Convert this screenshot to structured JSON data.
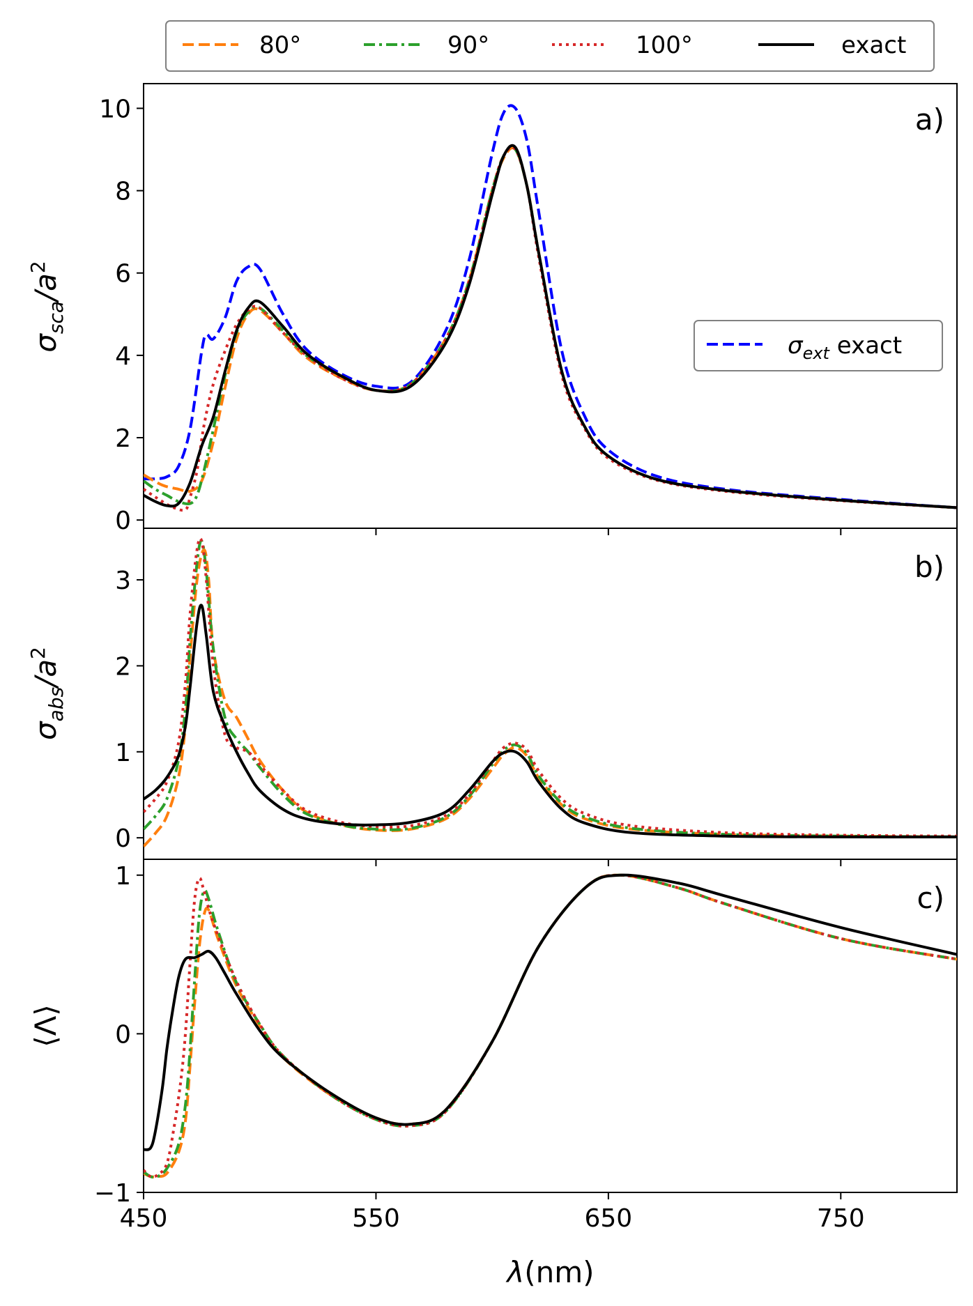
{
  "colors": {
    "80": "#ff7f0e",
    "90": "#2ca02c",
    "100": "#d62728",
    "exact": "#000000",
    "ext": "#0000ff",
    "legend_border": "#808080"
  },
  "legend": {
    "items": [
      {
        "key": "80",
        "label": "80°",
        "dash": "dashed"
      },
      {
        "key": "90",
        "label": "90°",
        "dash": "dashdot"
      },
      {
        "key": "100",
        "label": "100°",
        "dash": "dotted"
      },
      {
        "key": "exact",
        "label": "exact",
        "dash": "solid"
      }
    ],
    "placement": "top",
    "inset_label_sym": "σ",
    "inset_label_sub": "ext",
    "inset_label_rest": " exact"
  },
  "xaxis": {
    "label_sym": "λ",
    "label_rest": "(nm)",
    "lim": [
      450,
      800
    ],
    "ticks": [
      450,
      550,
      650,
      750
    ],
    "tick_labels": [
      "450",
      "550",
      "650",
      "750"
    ]
  },
  "chart_data": [
    {
      "type": "line",
      "panel_label": "a)",
      "ylabel_sym": "σ",
      "ylabel_sub": "sca",
      "ylabel_rest": "/a",
      "ylabel_sup": "2",
      "ylim": [
        -0.2,
        10.6
      ],
      "yticks": [
        0,
        2,
        4,
        6,
        8,
        10
      ],
      "ytick_labels": [
        "0",
        "2",
        "4",
        "6",
        "8",
        "10"
      ],
      "series": [
        {
          "key": "80",
          "x": [
            450,
            458,
            465,
            470,
            475,
            480,
            485,
            490,
            495,
            500,
            510,
            520,
            535,
            550,
            565,
            580,
            590,
            600,
            605,
            610,
            615,
            620,
            630,
            640,
            650,
            670,
            700,
            750,
            800
          ],
          "y": [
            1.1,
            0.85,
            0.75,
            0.7,
            0.95,
            1.9,
            3.2,
            4.4,
            5.0,
            5.1,
            4.55,
            3.95,
            3.45,
            3.15,
            3.3,
            4.4,
            5.8,
            8.0,
            8.8,
            9.0,
            8.1,
            6.5,
            3.6,
            2.25,
            1.55,
            1.0,
            0.72,
            0.48,
            0.3
          ]
        },
        {
          "key": "90",
          "x": [
            450,
            455,
            460,
            465,
            470,
            473,
            476,
            480,
            485,
            490,
            495,
            500,
            510,
            520,
            535,
            550,
            565,
            580,
            590,
            600,
            605,
            610,
            615,
            620,
            630,
            640,
            650,
            670,
            700,
            750,
            800
          ],
          "y": [
            0.95,
            0.75,
            0.6,
            0.45,
            0.4,
            0.6,
            1.2,
            2.2,
            3.5,
            4.55,
            5.05,
            5.15,
            4.6,
            4.0,
            3.5,
            3.15,
            3.3,
            4.4,
            5.8,
            8.0,
            8.85,
            9.0,
            8.1,
            6.5,
            3.6,
            2.25,
            1.55,
            1.0,
            0.72,
            0.48,
            0.3
          ]
        },
        {
          "key": "100",
          "x": [
            450,
            458,
            463,
            468,
            470,
            473,
            476,
            480,
            485,
            490,
            495,
            500,
            510,
            520,
            535,
            550,
            565,
            580,
            590,
            600,
            605,
            610,
            615,
            620,
            630,
            640,
            650,
            670,
            700,
            750,
            800
          ],
          "y": [
            0.75,
            0.45,
            0.3,
            0.25,
            0.55,
            1.2,
            2.3,
            3.3,
            4.1,
            4.75,
            5.1,
            5.15,
            4.55,
            4.0,
            3.45,
            3.15,
            3.3,
            4.4,
            5.8,
            8.0,
            8.85,
            9.0,
            8.1,
            6.4,
            3.5,
            2.2,
            1.5,
            0.98,
            0.7,
            0.47,
            0.3
          ]
        },
        {
          "key": "exact",
          "x": [
            450,
            455,
            460,
            465,
            470,
            475,
            480,
            485,
            490,
            495,
            500,
            510,
            520,
            535,
            550,
            565,
            580,
            590,
            600,
            605,
            610,
            615,
            620,
            630,
            640,
            650,
            670,
            700,
            750,
            800
          ],
          "y": [
            0.6,
            0.45,
            0.35,
            0.4,
            0.9,
            1.8,
            2.5,
            3.6,
            4.6,
            5.15,
            5.3,
            4.7,
            4.05,
            3.5,
            3.15,
            3.25,
            4.3,
            5.7,
            7.9,
            8.85,
            9.05,
            8.1,
            6.5,
            3.6,
            2.25,
            1.55,
            1.0,
            0.72,
            0.48,
            0.3
          ]
        },
        {
          "key": "ext",
          "x": [
            450,
            455,
            460,
            465,
            470,
            475,
            477,
            480,
            485,
            490,
            495,
            500,
            510,
            520,
            535,
            550,
            565,
            580,
            590,
            600,
            605,
            610,
            615,
            620,
            630,
            640,
            650,
            670,
            700,
            750,
            800
          ],
          "y": [
            1.0,
            1.0,
            1.05,
            1.3,
            2.2,
            4.1,
            4.5,
            4.4,
            4.9,
            5.8,
            6.15,
            6.1,
            5.0,
            4.15,
            3.55,
            3.25,
            3.35,
            4.6,
            6.3,
            8.9,
            9.9,
            10.0,
            9.2,
            7.5,
            4.1,
            2.5,
            1.7,
            1.08,
            0.75,
            0.5,
            0.3
          ]
        }
      ]
    },
    {
      "type": "line",
      "panel_label": "b)",
      "ylabel_sym": "σ",
      "ylabel_sub": "abs",
      "ylabel_rest": "/a",
      "ylabel_sup": "2",
      "ylim": [
        -0.25,
        3.6
      ],
      "yticks": [
        0,
        1,
        2,
        3
      ],
      "ytick_labels": [
        "0",
        "1",
        "2",
        "3"
      ],
      "series": [
        {
          "key": "80",
          "x": [
            450,
            455,
            460,
            465,
            468,
            470,
            473,
            476,
            478,
            480,
            485,
            490,
            495,
            500,
            510,
            520,
            535,
            550,
            565,
            580,
            590,
            600,
            605,
            610,
            615,
            620,
            630,
            640,
            660,
            700,
            750,
            800
          ],
          "y": [
            -0.1,
            0.05,
            0.25,
            0.7,
            1.3,
            2.1,
            3.0,
            3.35,
            3.0,
            2.2,
            1.6,
            1.4,
            1.15,
            0.9,
            0.55,
            0.3,
            0.15,
            0.09,
            0.1,
            0.22,
            0.45,
            0.8,
            0.97,
            1.05,
            0.95,
            0.7,
            0.38,
            0.22,
            0.1,
            0.04,
            0.02,
            0.01
          ]
        },
        {
          "key": "90",
          "x": [
            450,
            455,
            460,
            465,
            468,
            470,
            473,
            475,
            477,
            480,
            485,
            490,
            495,
            500,
            510,
            520,
            535,
            550,
            565,
            580,
            590,
            600,
            605,
            610,
            615,
            620,
            630,
            640,
            660,
            700,
            750,
            800
          ],
          "y": [
            0.1,
            0.25,
            0.45,
            0.9,
            1.5,
            2.3,
            3.2,
            3.45,
            3.1,
            2.2,
            1.4,
            1.15,
            1.0,
            0.82,
            0.5,
            0.28,
            0.15,
            0.1,
            0.11,
            0.24,
            0.48,
            0.85,
            1.02,
            1.08,
            0.98,
            0.72,
            0.4,
            0.24,
            0.11,
            0.04,
            0.02,
            0.01
          ]
        },
        {
          "key": "100",
          "x": [
            450,
            455,
            460,
            465,
            468,
            470,
            473,
            475,
            477,
            480,
            485,
            490,
            495,
            500,
            510,
            520,
            535,
            550,
            565,
            580,
            590,
            600,
            605,
            610,
            615,
            620,
            630,
            640,
            660,
            700,
            750,
            800
          ],
          "y": [
            0.3,
            0.45,
            0.65,
            1.1,
            1.8,
            2.6,
            3.35,
            3.45,
            3.0,
            2.0,
            1.2,
            1.05,
            1.0,
            0.85,
            0.55,
            0.32,
            0.18,
            0.13,
            0.14,
            0.26,
            0.5,
            0.88,
            1.05,
            1.1,
            1.02,
            0.78,
            0.45,
            0.28,
            0.14,
            0.06,
            0.03,
            0.02
          ]
        },
        {
          "key": "exact",
          "x": [
            450,
            455,
            460,
            465,
            468,
            470,
            473,
            475,
            477,
            480,
            485,
            490,
            495,
            500,
            510,
            520,
            535,
            550,
            565,
            580,
            590,
            600,
            605,
            610,
            615,
            620,
            630,
            640,
            660,
            700,
            750,
            800
          ],
          "y": [
            0.45,
            0.55,
            0.7,
            0.95,
            1.3,
            1.75,
            2.5,
            2.7,
            2.35,
            1.7,
            1.3,
            1.0,
            0.75,
            0.55,
            0.33,
            0.22,
            0.16,
            0.15,
            0.18,
            0.3,
            0.55,
            0.88,
            0.99,
            1.0,
            0.88,
            0.65,
            0.33,
            0.17,
            0.06,
            0.02,
            0.01,
            0.01
          ]
        }
      ]
    },
    {
      "type": "line",
      "panel_label": "c)",
      "ylabel_text": "⟨Λ⟩",
      "ylim": [
        -1.0,
        1.1
      ],
      "yticks": [
        -1,
        0,
        1
      ],
      "ytick_labels": [
        "−1",
        "0",
        "1"
      ],
      "series": [
        {
          "key": "80",
          "x": [
            450,
            453,
            456,
            460,
            465,
            468,
            470,
            472,
            474,
            476,
            478,
            482,
            490,
            500,
            510,
            530,
            550,
            565,
            580,
            600,
            620,
            640,
            655,
            680,
            700,
            750,
            800
          ],
          "y": [
            -0.88,
            -0.9,
            -0.9,
            -0.88,
            -0.75,
            -0.55,
            -0.2,
            0.2,
            0.55,
            0.75,
            0.78,
            0.6,
            0.3,
            0.05,
            -0.15,
            -0.38,
            -0.53,
            -0.57,
            -0.48,
            -0.05,
            0.55,
            0.92,
            1.0,
            0.92,
            0.82,
            0.6,
            0.47
          ]
        },
        {
          "key": "90",
          "x": [
            450,
            453,
            456,
            460,
            465,
            468,
            470,
            472,
            474,
            476,
            478,
            482,
            490,
            500,
            510,
            530,
            550,
            565,
            580,
            600,
            620,
            640,
            655,
            680,
            700,
            750,
            800
          ],
          "y": [
            -0.87,
            -0.9,
            -0.9,
            -0.85,
            -0.7,
            -0.45,
            -0.1,
            0.35,
            0.75,
            0.9,
            0.85,
            0.65,
            0.32,
            0.06,
            -0.14,
            -0.38,
            -0.54,
            -0.58,
            -0.49,
            -0.05,
            0.55,
            0.92,
            1.0,
            0.92,
            0.82,
            0.6,
            0.47
          ]
        },
        {
          "key": "100",
          "x": [
            450,
            453,
            456,
            460,
            463,
            466,
            468,
            470,
            472,
            474,
            476,
            480,
            490,
            500,
            510,
            530,
            550,
            565,
            580,
            600,
            620,
            640,
            655,
            680,
            700,
            750,
            800
          ],
          "y": [
            -0.86,
            -0.9,
            -0.89,
            -0.82,
            -0.6,
            -0.3,
            0.0,
            0.45,
            0.85,
            0.98,
            0.9,
            0.7,
            0.33,
            0.06,
            -0.14,
            -0.38,
            -0.54,
            -0.58,
            -0.49,
            -0.05,
            0.55,
            0.92,
            1.0,
            0.92,
            0.82,
            0.6,
            0.47
          ]
        },
        {
          "key": "exact",
          "x": [
            450,
            453,
            455,
            458,
            460,
            462,
            465,
            468,
            472,
            475,
            478,
            481,
            485,
            490,
            500,
            510,
            530,
            550,
            565,
            580,
            600,
            620,
            640,
            655,
            680,
            700,
            750,
            800
          ],
          "y": [
            -0.73,
            -0.72,
            -0.62,
            -0.35,
            -0.1,
            0.1,
            0.35,
            0.47,
            0.48,
            0.5,
            0.52,
            0.48,
            0.38,
            0.25,
            0.02,
            -0.15,
            -0.37,
            -0.53,
            -0.57,
            -0.48,
            -0.05,
            0.55,
            0.92,
            1.0,
            0.95,
            0.87,
            0.67,
            0.5
          ]
        }
      ]
    }
  ]
}
